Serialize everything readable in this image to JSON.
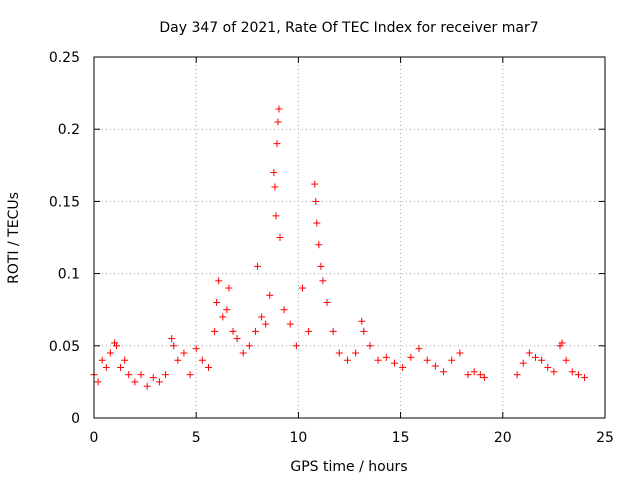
{
  "chart_data": {
    "type": "scatter",
    "title": "Day 347 of 2021, Rate Of TEC Index for receiver mar7",
    "xlabel": "GPS time / hours",
    "ylabel": "ROTI / TECUs",
    "xlim": [
      0,
      25
    ],
    "ylim": [
      0,
      0.25
    ],
    "xticks": [
      0,
      5,
      10,
      15,
      20,
      25
    ],
    "yticks": [
      0,
      0.05,
      0.1,
      0.15,
      0.2,
      0.25
    ],
    "xtick_labels": [
      "0",
      "5",
      "10",
      "15",
      "20",
      "25"
    ],
    "ytick_labels": [
      "0",
      "0.05",
      "0.1",
      "0.15",
      "0.2",
      "0.25"
    ],
    "grid": true,
    "grid_style": "dotted",
    "marker": "+",
    "color": "#ff0000",
    "data_gap": [
      19.2,
      20.6
    ],
    "series": [
      {
        "x": [
          0.0,
          0.2,
          0.4,
          0.6,
          0.8,
          1.0,
          1.1,
          1.3,
          1.5,
          1.7,
          2.0,
          2.3,
          2.6,
          2.9,
          3.2,
          3.5,
          3.8,
          3.9,
          4.1,
          4.4,
          4.7,
          5.0,
          5.3,
          5.6,
          5.9,
          6.0,
          6.1,
          6.3,
          6.5,
          6.6,
          6.8,
          7.0,
          7.3,
          7.6,
          7.9,
          8.0,
          8.2,
          8.4,
          8.6,
          8.8,
          8.85,
          8.9,
          8.95,
          9.0,
          9.05,
          9.1,
          9.3,
          9.6,
          9.9,
          10.2,
          10.5,
          10.8,
          10.85,
          10.9,
          11.0,
          11.1,
          11.2,
          11.4,
          11.7,
          12.0,
          12.4,
          12.8,
          13.1,
          13.2,
          13.5,
          13.9,
          14.3,
          14.7,
          15.1,
          15.5,
          15.9,
          16.3,
          16.7,
          17.1,
          17.5,
          17.9,
          18.3,
          18.6,
          18.9,
          19.1,
          20.7,
          21.0,
          21.3,
          21.6,
          21.9,
          22.2,
          22.5,
          22.8,
          22.9,
          23.1,
          23.4,
          23.7,
          24.0
        ],
        "y": [
          0.03,
          0.025,
          0.04,
          0.035,
          0.045,
          0.052,
          0.05,
          0.035,
          0.04,
          0.03,
          0.025,
          0.03,
          0.022,
          0.028,
          0.025,
          0.03,
          0.055,
          0.05,
          0.04,
          0.045,
          0.03,
          0.048,
          0.04,
          0.035,
          0.06,
          0.08,
          0.095,
          0.07,
          0.075,
          0.09,
          0.06,
          0.055,
          0.045,
          0.05,
          0.06,
          0.105,
          0.07,
          0.065,
          0.085,
          0.17,
          0.16,
          0.14,
          0.19,
          0.205,
          0.214,
          0.125,
          0.075,
          0.065,
          0.05,
          0.09,
          0.06,
          0.162,
          0.15,
          0.135,
          0.12,
          0.105,
          0.095,
          0.08,
          0.06,
          0.045,
          0.04,
          0.045,
          0.067,
          0.06,
          0.05,
          0.04,
          0.042,
          0.038,
          0.035,
          0.042,
          0.048,
          0.04,
          0.036,
          0.032,
          0.04,
          0.045,
          0.03,
          0.032,
          0.03,
          0.028,
          0.03,
          0.038,
          0.045,
          0.042,
          0.04,
          0.035,
          0.032,
          0.05,
          0.052,
          0.04,
          0.032,
          0.03,
          0.028
        ]
      }
    ]
  }
}
